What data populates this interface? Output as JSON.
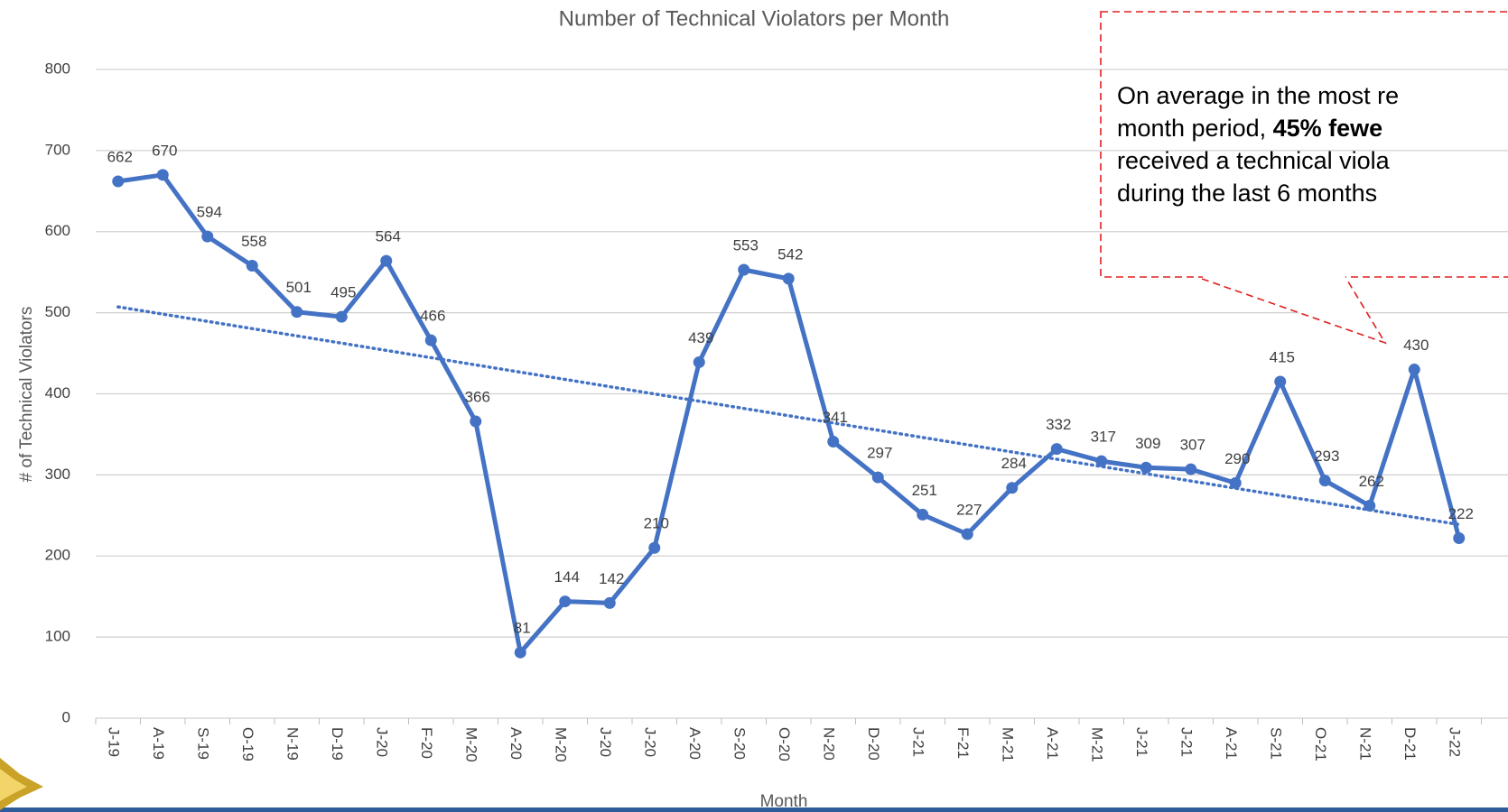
{
  "chart_data": {
    "type": "line",
    "title": "Number of Technical Violators per Month",
    "x_label": "Month",
    "y_label": "# of Technical Violators",
    "categories": [
      "J-19",
      "A-19",
      "S-19",
      "O-19",
      "N-19",
      "D-19",
      "J-20",
      "F-20",
      "M-20",
      "A-20",
      "M-20",
      "J-20",
      "J-20",
      "A-20",
      "S-20",
      "O-20",
      "N-20",
      "D-20",
      "J-21",
      "F-21",
      "M-21",
      "A-21",
      "M-21",
      "J-21",
      "J-21",
      "A-21",
      "S-21",
      "O-21",
      "N-21",
      "D-21",
      "J-22"
    ],
    "series": [
      {
        "name": "Technical Violators",
        "color": "#4472c4",
        "values": [
          662,
          670,
          594,
          558,
          501,
          495,
          564,
          466,
          366,
          81,
          144,
          142,
          210,
          439,
          553,
          542,
          341,
          297,
          251,
          227,
          284,
          332,
          317,
          309,
          307,
          290,
          415,
          293,
          262,
          430,
          222
        ]
      }
    ],
    "trendline": "linear",
    "ylim": [
      0,
      800
    ],
    "yticks": [
      0,
      100,
      200,
      300,
      400,
      500,
      600,
      700,
      800
    ],
    "grid": true,
    "annotation": {
      "lines": [
        [
          "On average in the most re"
        ],
        [
          "month period, ",
          "45% fewe"
        ],
        [
          "received a technical viola"
        ],
        [
          "during the last 6 months"
        ]
      ],
      "bold": [
        [
          false
        ],
        [
          false,
          true
        ],
        [
          false
        ],
        [
          false
        ]
      ]
    }
  }
}
